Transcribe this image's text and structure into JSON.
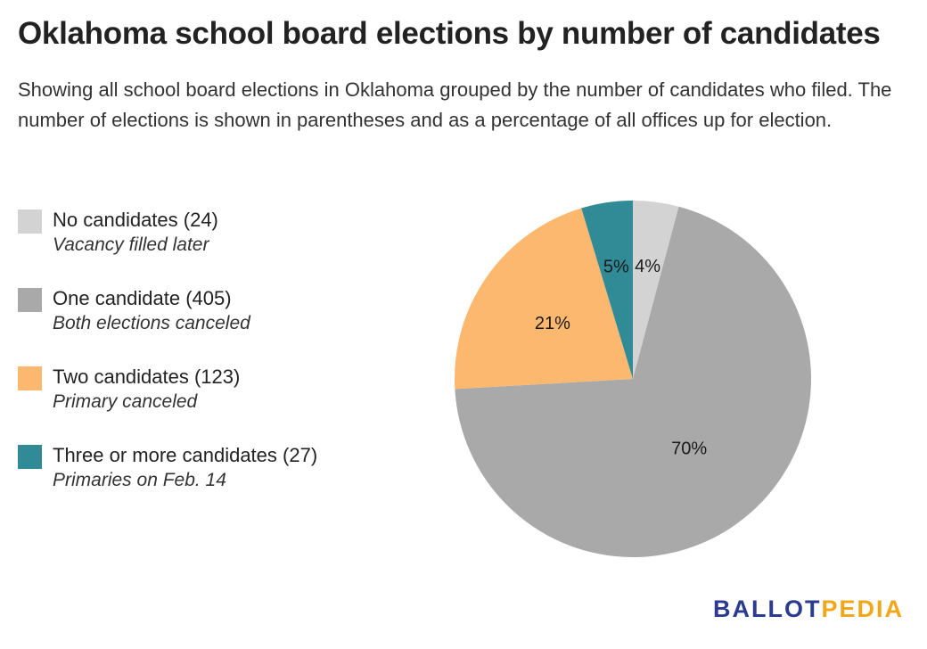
{
  "header": {
    "title": "Oklahoma school board elections by number of candidates",
    "subtitle": "Showing all school board elections in Oklahoma grouped by the number of candidates who filed. The number of elections is shown in parentheses and as a percentage of all offices up for election."
  },
  "legend": {
    "items": [
      {
        "label": "No candidates (24)",
        "note": "Vacancy filled later",
        "color": "#d3d3d3"
      },
      {
        "label": "One candidate (405)",
        "note": "Both elections canceled",
        "color": "#a9a9a9"
      },
      {
        "label": "Two candidates (123)",
        "note": "Primary canceled",
        "color": "#fdb870"
      },
      {
        "label": "Three or more candidates (27)",
        "note": "Primaries on Feb. 14",
        "color": "#318b96"
      }
    ]
  },
  "chart_data": {
    "type": "pie",
    "categories": [
      "No candidates",
      "One candidate",
      "Two candidates",
      "Three or more candidates"
    ],
    "values": [
      24,
      405,
      123,
      27
    ],
    "data_labels": [
      "4%",
      "70%",
      "21%",
      "5%"
    ],
    "colors": [
      "#d3d3d3",
      "#a9a9a9",
      "#fdb870",
      "#318b96"
    ],
    "start": "12 o'clock, clockwise"
  },
  "logo": {
    "part1": "BALLOT",
    "part2": "PEDIA",
    "color1": "#2b3b8f",
    "color2": "#f2a71b"
  }
}
